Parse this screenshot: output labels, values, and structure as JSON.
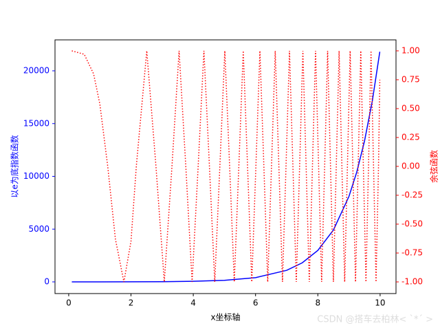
{
  "chart_data": {
    "type": "line",
    "xlabel": "x坐标轴",
    "ylabel": "以e为底指数函数",
    "y2label": "余弦函数",
    "watermark": "CSDN @搭车去柏林< `*´ >",
    "xlim": [
      -0.44,
      10.51
    ],
    "xticks": [
      0,
      2,
      4,
      6,
      8,
      10
    ],
    "ylim": [
      -1107,
      22932
    ],
    "yticks": [
      0,
      5000,
      10000,
      15000,
      20000
    ],
    "y2lim": [
      -1.101,
      1.095
    ],
    "y2ticks": [
      {
        "value": -1,
        "label": "-1.00"
      },
      {
        "value": -0.75,
        "label": "-0.75"
      },
      {
        "value": -0.5,
        "label": "-0.50"
      },
      {
        "value": -0.25,
        "label": "-0.25"
      },
      {
        "value": 0,
        "label": "0.00"
      },
      {
        "value": 0.25,
        "label": "0.25"
      },
      {
        "value": 0.5,
        "label": "0.50"
      },
      {
        "value": 0.75,
        "label": "0.75"
      },
      {
        "value": 1,
        "label": "1.00"
      }
    ],
    "ylabel_color": "blue",
    "y2label_color": "red",
    "series": [
      {
        "color": "blue",
        "dash": "solid",
        "axis": "y",
        "x": [
          0.1,
          1,
          2,
          3,
          4,
          5,
          6,
          7,
          7.5,
          8,
          8.5,
          9,
          9.25,
          9.5,
          9.75,
          9.99
        ],
        "values": [
          1.1,
          2.7,
          7.4,
          20.1,
          54.6,
          148.4,
          403.4,
          1096.6,
          1808,
          2981,
          4915,
          8103,
          10405,
          13360,
          17154,
          21807
        ]
      },
      {
        "color": "red",
        "dash": "dotted",
        "axis": "y2",
        "x": [
          0.1,
          0.5,
          0.8,
          1.0,
          1.253,
          1.5,
          1.772,
          2.0,
          2.171,
          2.507,
          2.802,
          3.07,
          3.316,
          3.545,
          3.76,
          3.963,
          4.157,
          4.342,
          4.519,
          4.69,
          4.854,
          5.013,
          5.168,
          5.317,
          5.463,
          5.605,
          5.743,
          5.879,
          6.011,
          6.14,
          6.267,
          6.391,
          6.512,
          6.632,
          6.749,
          6.865,
          6.978,
          7.09,
          7.2,
          7.308,
          7.415,
          7.52,
          7.624,
          7.726,
          7.827,
          7.927,
          8.025,
          8.122,
          8.219,
          8.314,
          8.407,
          8.5,
          8.592,
          8.683,
          8.773,
          8.862,
          8.95,
          9.038,
          9.124,
          9.21,
          9.295,
          9.379,
          9.462,
          9.545,
          9.627,
          9.708,
          9.789,
          9.869,
          9.948,
          9.99
        ],
        "values": [
          1,
          0.97,
          0.8,
          0.54,
          0,
          -0.63,
          -1,
          -0.65,
          0,
          1,
          0,
          -1,
          0,
          1,
          0,
          -1,
          0,
          1,
          0,
          -1,
          0,
          1,
          0,
          -1,
          0,
          1,
          0,
          -1,
          0,
          1,
          0,
          -1,
          0,
          1,
          0,
          -1,
          0,
          1,
          0,
          -1,
          0,
          1,
          0,
          -1,
          0,
          1,
          0,
          -1,
          0,
          1,
          0,
          -1,
          0,
          1,
          0,
          -1,
          0,
          1,
          0,
          -1,
          0,
          1,
          0,
          -1,
          0,
          1,
          0,
          -1,
          0,
          0.75
        ]
      }
    ]
  }
}
